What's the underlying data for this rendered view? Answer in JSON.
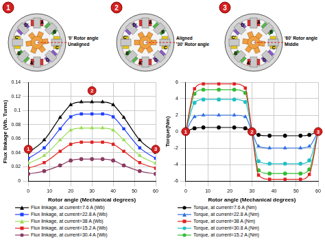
{
  "diagram": {
    "stator_labels": [
      "A",
      "B",
      "C",
      "D",
      "A'",
      "B'",
      "C'",
      "D'"
    ],
    "panels": [
      {
        "marker": "1",
        "rotor_angle": 0,
        "texts": [
          "'0' Rotor angle",
          "Unaligned"
        ]
      },
      {
        "marker": "2",
        "rotor_angle": 30,
        "texts": [
          "Aligned",
          "'30' Rotor angle"
        ]
      },
      {
        "marker": "3",
        "rotor_angle": 60,
        "texts": [
          "'60' Rotor angle",
          "Middle"
        ]
      }
    ]
  },
  "chart_data": [
    {
      "type": "line",
      "x_label": "Rotor angle (Mechanical degrees)",
      "y_label": "Flux linkage (Wb. Turns)",
      "x": [
        0,
        7.5,
        15,
        20,
        25,
        30,
        35,
        40,
        45,
        52.5,
        60
      ],
      "xlim": [
        0,
        60
      ],
      "xticks": [
        0,
        10,
        20,
        30,
        40,
        50,
        60
      ],
      "ylim": [
        0,
        0.14
      ],
      "yticks": [
        0,
        0.02,
        0.04,
        0.06,
        0.08,
        0.1,
        0.12,
        0.14
      ],
      "grid": true,
      "legend": "bottom",
      "series": [
        {
          "name": "Flux linkage, at current=7.6 A (Wb)",
          "color": "#000000",
          "marker": "triangle",
          "values": [
            0.04,
            0.058,
            0.09,
            0.108,
            0.112,
            0.112,
            0.112,
            0.108,
            0.09,
            0.058,
            0.04
          ]
        },
        {
          "name": "Flux linkage, at current=22.8 A (Wb)",
          "color": "#1f3fff",
          "marker": "square",
          "values": [
            0.032,
            0.047,
            0.074,
            0.091,
            0.095,
            0.095,
            0.095,
            0.091,
            0.074,
            0.047,
            0.032
          ]
        },
        {
          "name": "Flux linkage, at current=38 A (Wb)",
          "color": "#99dd55",
          "marker": "triangle",
          "values": [
            0.025,
            0.036,
            0.058,
            0.072,
            0.075,
            0.075,
            0.075,
            0.072,
            0.058,
            0.036,
            0.025
          ]
        },
        {
          "name": "Flux linkage, at current=15.2 A (Wb)",
          "color": "#e02020",
          "marker": "square",
          "values": [
            0.018,
            0.026,
            0.042,
            0.052,
            0.055,
            0.055,
            0.055,
            0.052,
            0.042,
            0.026,
            0.018
          ]
        },
        {
          "name": "Flux linkage, at current=30.4 A (Wb)",
          "color": "#8b3a62",
          "marker": "circle",
          "values": [
            0.01,
            0.014,
            0.022,
            0.029,
            0.031,
            0.031,
            0.031,
            0.029,
            0.022,
            0.014,
            0.01
          ]
        }
      ],
      "annotations": [
        {
          "text": "1",
          "x": 0,
          "y": 0.045
        },
        {
          "text": "2",
          "x": 30,
          "y": 0.128
        },
        {
          "text": "3",
          "x": 60,
          "y": 0.045
        }
      ]
    },
    {
      "type": "line",
      "x_label": "Rotor angle (Mechanical degrees)",
      "y_label": "Torque(Nm)",
      "x": [
        0,
        4,
        8,
        15,
        22,
        27,
        30,
        33,
        38,
        45,
        52,
        56,
        60
      ],
      "xlim": [
        0,
        60
      ],
      "xticks": [
        0,
        10,
        20,
        30,
        40,
        50,
        60
      ],
      "ylim": [
        -6,
        6
      ],
      "yticks": [
        -6,
        -4,
        -2,
        0,
        2,
        4,
        6
      ],
      "grid": true,
      "legend": "bottom",
      "series": [
        {
          "name": "Torque, at current=7.6 A (Nm)",
          "color": "#000000",
          "marker": "circle",
          "values": [
            0,
            0.4,
            0.5,
            0.5,
            0.5,
            0.4,
            0,
            -0.4,
            -0.5,
            -0.5,
            -0.5,
            -0.4,
            0
          ]
        },
        {
          "name": "Torque, at current=22.8 A (Nm)",
          "color": "#2f6fe0",
          "marker": "triangle",
          "values": [
            0,
            1.8,
            2,
            2,
            2,
            1.8,
            0,
            -1.8,
            -2,
            -2,
            -2,
            -1.8,
            0
          ]
        },
        {
          "name": "Torque, at current=38 A (Nm)",
          "color": "#e02020",
          "marker": "square",
          "values": [
            0,
            5.2,
            5.8,
            5.8,
            5.8,
            5.3,
            0,
            -5.3,
            -5.8,
            -5.8,
            -5.8,
            -5.2,
            0
          ]
        },
        {
          "name": "Torque, at current=30.8 A (Nm)",
          "color": "#22c0c8",
          "marker": "circle",
          "values": [
            0,
            3.5,
            3.9,
            3.9,
            3.9,
            3.6,
            0,
            -3.6,
            -3.9,
            -3.9,
            -3.9,
            -3.5,
            0
          ]
        },
        {
          "name": "Torque, at current=15.2 A (Nm)",
          "color": "#33bb33",
          "marker": "circle",
          "values": [
            0,
            4.6,
            5.1,
            5.1,
            5.1,
            4.7,
            0,
            -4.7,
            -5.1,
            -5.1,
            -5.1,
            -4.6,
            0
          ]
        }
      ],
      "annotations": [
        {
          "text": "1",
          "x": 0,
          "y": 0
        },
        {
          "text": "2",
          "x": 30,
          "y": 0
        },
        {
          "text": "3",
          "x": 60,
          "y": 0
        }
      ]
    }
  ]
}
